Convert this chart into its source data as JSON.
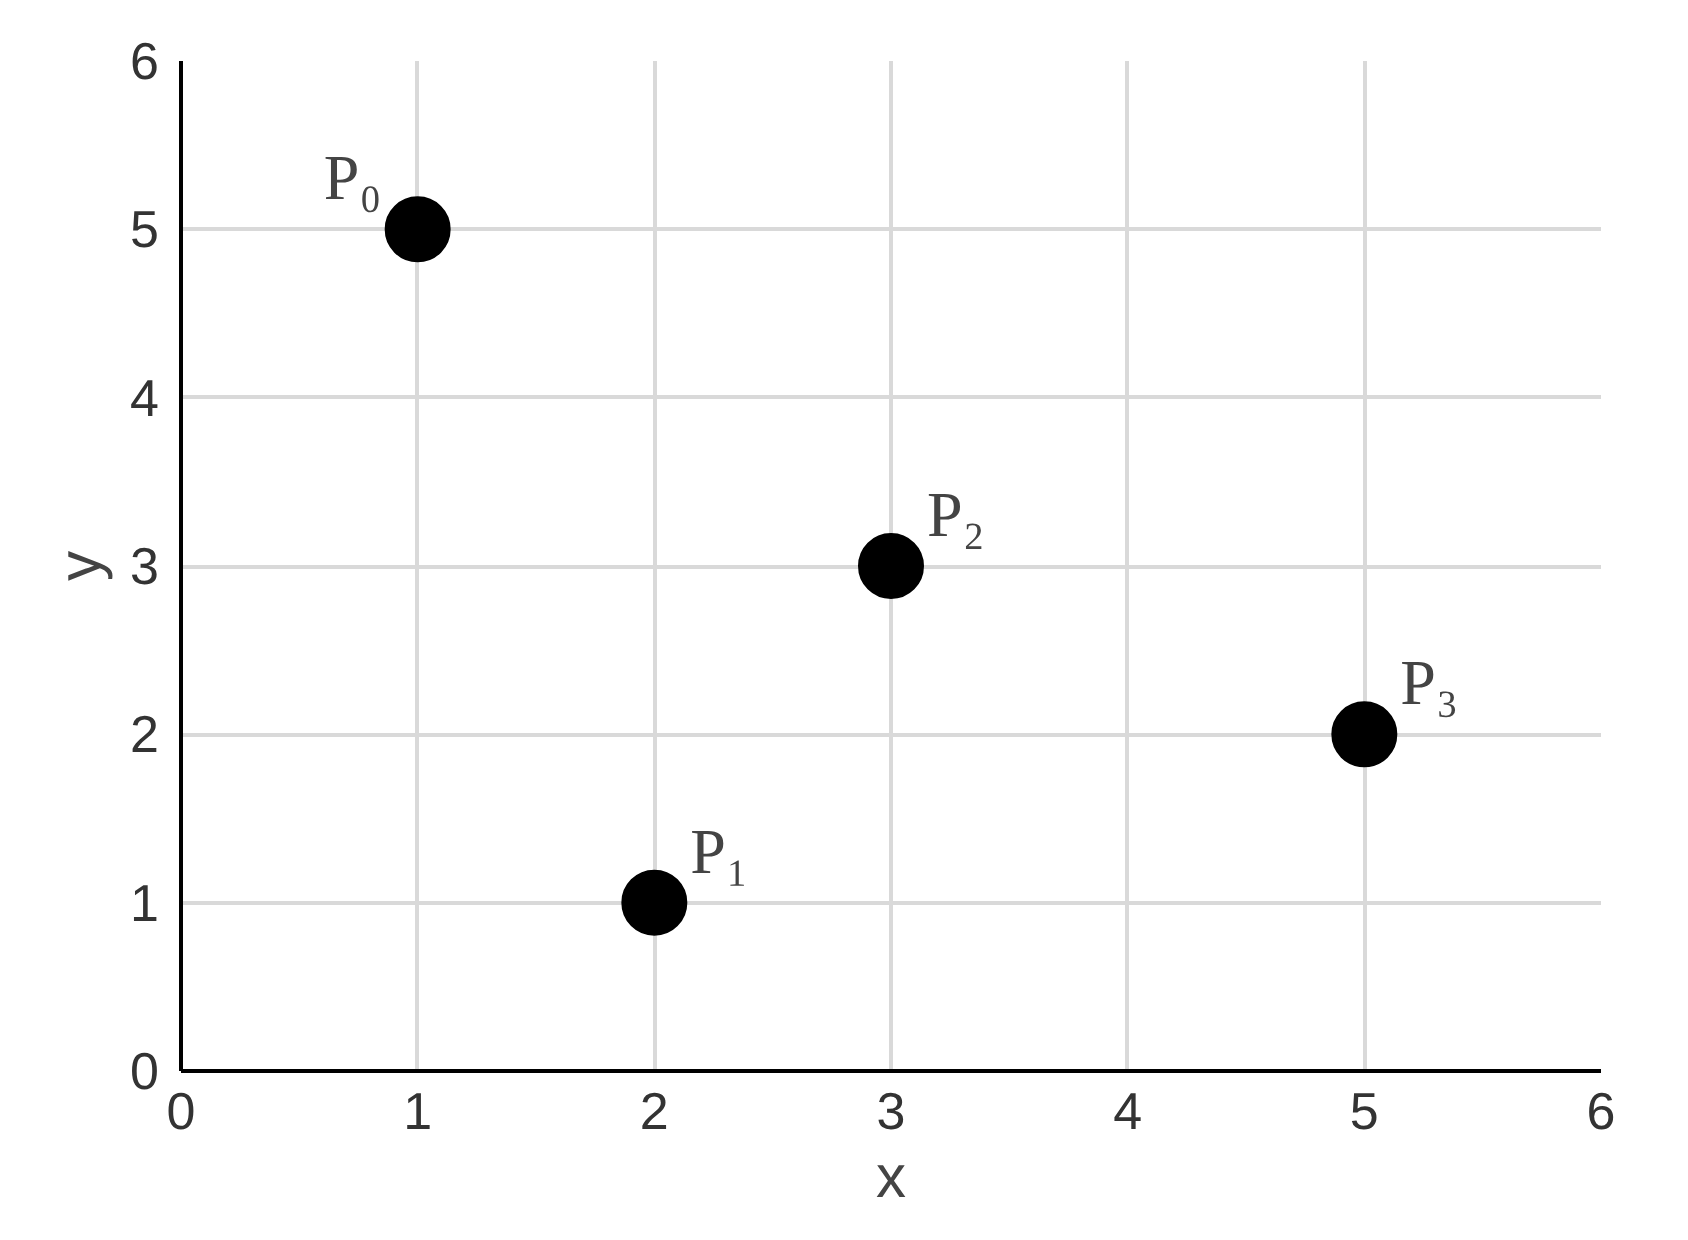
{
  "chart_data": {
    "type": "scatter",
    "xlabel": "x",
    "ylabel": "y",
    "x": [
      1,
      2,
      3,
      5
    ],
    "series": [
      {
        "color": "#000000",
        "values": [
          5,
          1,
          3,
          2
        ]
      }
    ],
    "xlim": [
      0,
      6
    ],
    "ylim": [
      0,
      6
    ],
    "xticks": [
      0,
      1,
      2,
      3,
      4,
      5,
      6
    ],
    "yticks": [
      0,
      1,
      2,
      3,
      4,
      5,
      6
    ],
    "grid": true,
    "marker": "circle",
    "annotations": [
      {
        "text": "P₀",
        "x": 1,
        "y": 5
      },
      {
        "text": "P₁",
        "x": 2,
        "y": 1
      },
      {
        "text": "P₂",
        "x": 3,
        "y": 3
      },
      {
        "text": "P₃",
        "x": 5,
        "y": 2
      }
    ]
  }
}
